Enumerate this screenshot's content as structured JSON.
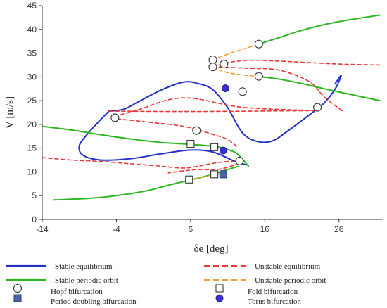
{
  "chart_data": {
    "type": "line",
    "title": "",
    "xlabel": "δe [deg]",
    "ylabel": "V [m/s]",
    "xlim": [
      -14,
      32
    ],
    "ylim": [
      0,
      45
    ],
    "xticks": [
      -14,
      -4,
      6,
      16,
      26
    ],
    "yticks": [
      0,
      5,
      10,
      15,
      20,
      25,
      30,
      35,
      40,
      45
    ],
    "grid": false,
    "legend_position": "bottom",
    "colors": {
      "stable_equilibrium": "#2230c8",
      "unstable_equilibrium": "#e83838",
      "stable_periodic": "#2db81f",
      "unstable_periodic": "#f0a030",
      "period_doubling_marker": "#4a64a8",
      "torus_marker": "#3a2fd0"
    },
    "series": [
      {
        "name": "Stable equilibrium",
        "style": "solid",
        "segments": [
          [
            [
              -5,
              22.8
            ],
            [
              -3,
              23.2
            ],
            [
              -1,
              24.8
            ],
            [
              2,
              27.2
            ],
            [
              5,
              28.9
            ],
            [
              7,
              28.6
            ],
            [
              9,
              27.3
            ],
            [
              11,
              23.5
            ],
            [
              13,
              18.2
            ],
            [
              15,
              16.4
            ],
            [
              17,
              16.5
            ],
            [
              19,
              18.5
            ],
            [
              22,
              22
            ],
            [
              24,
              24.5
            ],
            [
              25.5,
              27.5
            ],
            [
              26.3,
              30.3
            ],
            [
              25.5,
              28.6
            ]
          ],
          [
            [
              -5,
              22.8
            ],
            [
              -6.5,
              20.4
            ],
            [
              -8,
              17.8
            ],
            [
              -9,
              15.5
            ],
            [
              -8.5,
              13.5
            ],
            [
              -6,
              12.5
            ],
            [
              -2,
              12.8
            ],
            [
              2,
              13.8
            ],
            [
              6,
              14.6
            ],
            [
              9,
              14.2
            ],
            [
              12,
              12.2
            ],
            [
              13.5,
              11.5
            ]
          ]
        ]
      },
      {
        "name": "Unstable equilibrium",
        "style": "dashed",
        "segments": [
          [
            [
              -14,
              13
            ],
            [
              -10,
              12.5
            ],
            [
              -6,
              12.2
            ],
            [
              -2,
              11.7
            ],
            [
              2,
              11.2
            ],
            [
              5,
              10.8
            ],
            [
              7,
              11.2
            ],
            [
              9,
              11.8
            ],
            [
              11,
              12.2
            ],
            [
              12.5,
              12
            ]
          ],
          [
            [
              -5,
              22.8
            ],
            [
              5,
              22.7
            ],
            [
              15,
              22.8
            ],
            [
              23,
              22.9
            ]
          ],
          [
            [
              23,
              22.9
            ],
            [
              13,
              23.6
            ],
            [
              5,
              25.6
            ],
            [
              -1,
              23.1
            ],
            [
              -4.2,
              21.4
            ],
            [
              -1,
              20.7
            ],
            [
              5,
              19.6
            ],
            [
              9,
              17.9
            ],
            [
              11,
              16.8
            ],
            [
              12.5,
              15
            ]
          ],
          [
            [
              9,
              32.1
            ],
            [
              11,
              32
            ],
            [
              14,
              31.8
            ],
            [
              18,
              31.4
            ],
            [
              22,
              29
            ],
            [
              24,
              25.8
            ],
            [
              26.5,
              22.8
            ]
          ],
          [
            [
              9,
              32.1
            ],
            [
              11,
              33
            ],
            [
              14,
              33.5
            ],
            [
              18,
              33.3
            ],
            [
              22,
              33
            ],
            [
              26,
              32.7
            ],
            [
              31.5,
              32.5
            ]
          ],
          [
            [
              12.5,
              12
            ],
            [
              11.5,
              11.2
            ],
            [
              9.5,
              10.5
            ],
            [
              7,
              10.5
            ],
            [
              5,
              10.2
            ],
            [
              3,
              9.8
            ]
          ]
        ]
      },
      {
        "name": "Stable periodic orbit",
        "style": "solid",
        "segments": [
          [
            [
              -14,
              19.6
            ],
            [
              -10,
              18.8
            ],
            [
              -6,
              17.8
            ],
            [
              -2,
              16.9
            ],
            [
              2,
              16.2
            ],
            [
              6,
              15.8
            ],
            [
              9.5,
              15.3
            ],
            [
              11,
              14.7
            ],
            [
              12.3,
              13.8
            ],
            [
              13.8,
              11.2
            ]
          ],
          [
            [
              -12.5,
              4.1
            ],
            [
              -8,
              4.4
            ],
            [
              -4,
              5
            ],
            [
              0,
              6
            ],
            [
              3,
              7.2
            ],
            [
              6,
              8.3
            ],
            [
              9,
              9.5
            ],
            [
              11,
              10.5
            ],
            [
              12.5,
              11.2
            ]
          ],
          [
            [
              15.2,
              36.9
            ],
            [
              18,
              38.3
            ],
            [
              21,
              39.8
            ],
            [
              24,
              41
            ],
            [
              27,
              41.9
            ],
            [
              31.5,
              43
            ]
          ],
          [
            [
              15.2,
              30.1
            ],
            [
              18,
              29.5
            ],
            [
              21,
              28.6
            ],
            [
              24,
              27.5
            ],
            [
              27,
              26.5
            ],
            [
              31.5,
              25
            ]
          ]
        ]
      },
      {
        "name": "Unstable periodic orbit",
        "style": "dashed",
        "segments": [
          [
            [
              9,
              33.6
            ],
            [
              11,
              34.8
            ],
            [
              13,
              35.8
            ],
            [
              15.2,
              36.9
            ]
          ],
          [
            [
              9,
              31.9
            ],
            [
              11,
              30.9
            ],
            [
              13,
              30.4
            ],
            [
              15.2,
              30.1
            ]
          ],
          [
            [
              6,
              8.3
            ],
            [
              8,
              9
            ],
            [
              9.2,
              9.5
            ],
            [
              10.4,
              9.6
            ]
          ]
        ]
      }
    ],
    "markers": [
      {
        "type": "hopf",
        "points": [
          [
            15.2,
            36.9
          ],
          [
            9,
            33.6
          ],
          [
            10.5,
            32.7
          ],
          [
            9,
            32.1
          ],
          [
            15.2,
            30.1
          ],
          [
            13,
            26.9
          ],
          [
            23.1,
            23.6
          ],
          [
            -4.2,
            21.4
          ],
          [
            6.8,
            18.7
          ],
          [
            12.6,
            12.3
          ]
        ]
      },
      {
        "type": "fold",
        "points": [
          [
            6,
            15.9
          ],
          [
            9.2,
            15.2
          ],
          [
            5.8,
            8.4
          ],
          [
            9.2,
            9.5
          ]
        ]
      },
      {
        "type": "period_doubling",
        "points": [
          [
            10.4,
            9.5
          ]
        ]
      },
      {
        "type": "torus",
        "points": [
          [
            10.7,
            27.6
          ],
          [
            10.4,
            14.5
          ]
        ]
      }
    ],
    "legend": [
      {
        "key": "stable_equilibrium",
        "label": "Stable equilibrium"
      },
      {
        "key": "unstable_equilibrium",
        "label": "Unstable equilibrium"
      },
      {
        "key": "stable_periodic",
        "label": "Stable periodic orbit"
      },
      {
        "key": "unstable_periodic",
        "label": "Unstable periodic orbit"
      },
      {
        "key": "hopf",
        "label": "Hopf bifurcation"
      },
      {
        "key": "fold",
        "label": "Fold bifurcation"
      },
      {
        "key": "period_doubling",
        "label": "Period doubling bifurcation"
      },
      {
        "key": "torus",
        "label": "Torus bifurcation"
      }
    ]
  }
}
